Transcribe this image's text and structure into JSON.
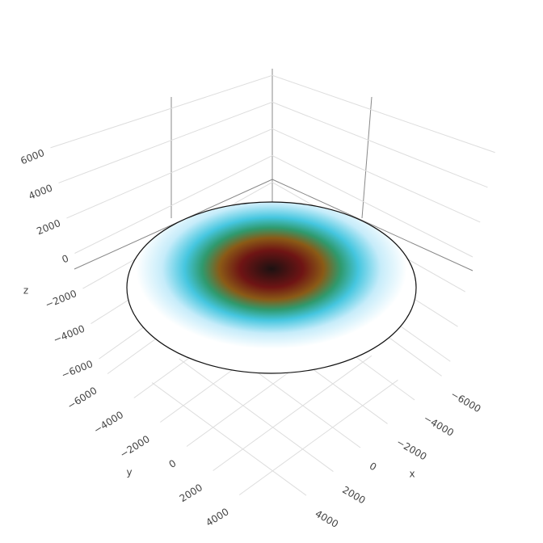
{
  "chart_data": {
    "type": "surface",
    "xaxis_title": "x",
    "yaxis_title": "y",
    "zaxis_title": "z",
    "xlim": [
      -6500,
      6500
    ],
    "ylim": [
      -6500,
      6500
    ],
    "zlim": [
      -6500,
      6500
    ],
    "xticks": [
      {
        "value": -6000,
        "label": "−6000"
      },
      {
        "value": -4000,
        "label": "−4000"
      },
      {
        "value": -2000,
        "label": "−2000"
      },
      0,
      2000,
      4000
    ],
    "yticks": [
      {
        "value": -6000,
        "label": "−6000"
      },
      {
        "value": -4000,
        "label": "−4000"
      },
      {
        "value": -2000,
        "label": "−2000"
      },
      0,
      2000,
      4000
    ],
    "zticks": [
      {
        "value": -6000,
        "label": "−6000"
      },
      {
        "value": -4000,
        "label": "−4000"
      },
      {
        "value": -2000,
        "label": "−2000"
      },
      0,
      2000,
      4000,
      6000
    ],
    "grid": true,
    "colorscale": [
      [
        0,
        "#1c1111"
      ],
      [
        0.18,
        "#6e1414"
      ],
      [
        0.3,
        "#8a5a16"
      ],
      [
        0.4,
        "#2f9a6e"
      ],
      [
        0.5,
        "#45c6df"
      ],
      [
        0.63,
        "#c6ecfa"
      ],
      [
        0.78,
        "#ffffff"
      ]
    ]
  }
}
